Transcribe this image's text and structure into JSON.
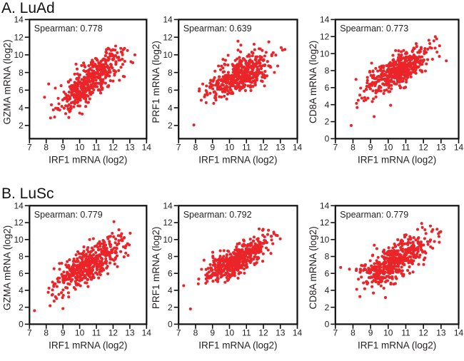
{
  "panels": {
    "a": {
      "label": "A. LuAd"
    },
    "b": {
      "label": "B. LuSc"
    }
  },
  "style": {
    "marker_color": "#ea2529",
    "axis_color": "#0f0f0f",
    "text_color": "#231f20"
  },
  "chart_data": [
    {
      "type": "scatter",
      "panel": "A. LuAd",
      "xlabel": "IRF1 mRNA (log2)",
      "ylabel": "GZMA mRNA (log2)",
      "annotation": "Spearman: 0.778",
      "spearman": 0.778,
      "xlim": [
        7,
        14
      ],
      "ylim": [
        0.5,
        14
      ],
      "x_ticks": [
        7,
        8,
        9,
        10,
        11,
        12,
        13,
        14
      ],
      "y_ticks": [
        2,
        4,
        6,
        8,
        10,
        12,
        14
      ],
      "n_points": 460,
      "distribution": {
        "x_mean": 10.6,
        "x_sd": 0.92,
        "y_mean": 7.05,
        "y_sd": 1.6,
        "rho": 0.75,
        "seed": 11,
        "x_range": [
          7.85,
          13.35
        ],
        "y_range": [
          2.85,
          11.15
        ]
      },
      "outliers": [
        [
          7.9,
          5.2
        ],
        [
          8.15,
          6.7
        ],
        [
          12.15,
          11.0
        ],
        [
          11.6,
          10.6
        ],
        [
          13.3,
          10.0
        ],
        [
          9.35,
          2.9
        ],
        [
          10.15,
          3.3
        ]
      ]
    },
    {
      "type": "scatter",
      "panel": "A. LuAd",
      "xlabel": "IRF1 mRNA (log2)",
      "ylabel": "PRF1 mRNA (log2)",
      "annotation": "Spearman: 0.639",
      "spearman": 0.639,
      "xlim": [
        7,
        14
      ],
      "ylim": [
        0.5,
        14
      ],
      "x_ticks": [
        7,
        8,
        9,
        10,
        11,
        12,
        13,
        14
      ],
      "y_ticks": [
        2,
        4,
        6,
        8,
        10,
        12,
        14
      ],
      "n_points": 450,
      "distribution": {
        "x_mean": 10.6,
        "x_sd": 0.95,
        "y_mean": 7.75,
        "y_sd": 1.3,
        "rho": 0.62,
        "seed": 22,
        "x_range": [
          8.2,
          13.3
        ],
        "y_range": [
          4.3,
          11.6
        ]
      },
      "outliers": [
        [
          7.9,
          2.05
        ],
        [
          10.5,
          11.55
        ],
        [
          11.45,
          11.2
        ]
      ]
    },
    {
      "type": "scatter",
      "panel": "A. LuAd",
      "xlabel": "IRF1 mRNA (log2)",
      "ylabel": "CD8A mRNA (log2)",
      "annotation": "Spearman: 0.773",
      "spearman": 0.773,
      "xlim": [
        7,
        14
      ],
      "ylim": [
        0,
        14
      ],
      "x_ticks": [
        7,
        8,
        9,
        10,
        11,
        12,
        13,
        14
      ],
      "y_ticks": [
        0,
        2,
        4,
        6,
        8,
        10,
        12,
        14
      ],
      "n_points": 470,
      "distribution": {
        "x_mean": 10.6,
        "x_sd": 0.95,
        "y_mean": 8.0,
        "y_sd": 1.45,
        "rho": 0.74,
        "seed": 33,
        "x_range": [
          8.05,
          13.0
        ],
        "y_range": [
          3.5,
          12.25
        ]
      },
      "outliers": [
        [
          7.9,
          1.55
        ],
        [
          9.2,
          2.6
        ],
        [
          13.3,
          9.15
        ],
        [
          8.2,
          4.15
        ]
      ]
    },
    {
      "type": "scatter",
      "panel": "B. LuSc",
      "xlabel": "IRF1 mRNA (log2)",
      "ylabel": "GZMA mRNA (log2)",
      "annotation": "Spearman: 0.779",
      "spearman": 0.779,
      "xlim": [
        7,
        14
      ],
      "ylim": [
        0,
        14
      ],
      "x_ticks": [
        7,
        8,
        9,
        10,
        11,
        12,
        13,
        14
      ],
      "y_ticks": [
        0,
        2,
        4,
        6,
        8,
        10,
        12,
        14
      ],
      "n_points": 460,
      "distribution": {
        "x_mean": 10.4,
        "x_sd": 1.05,
        "y_mean": 6.9,
        "y_sd": 1.65,
        "rho": 0.75,
        "seed": 44,
        "x_range": [
          8.0,
          13.1
        ],
        "y_range": [
          1.85,
          12.1
        ]
      },
      "outliers": [
        [
          7.3,
          1.6
        ],
        [
          12.05,
          12.1
        ],
        [
          12.35,
          11.15
        ],
        [
          9.0,
          1.85
        ]
      ]
    },
    {
      "type": "scatter",
      "panel": "B. LuSc",
      "xlabel": "IRF1 mRNA (log2)",
      "ylabel": "PRF1 mRNA (log2)",
      "annotation": "Spearman: 0.792",
      "spearman": 0.792,
      "xlim": [
        7,
        14
      ],
      "ylim": [
        0,
        14
      ],
      "x_ticks": [
        7,
        8,
        9,
        10,
        11,
        12,
        13,
        14
      ],
      "y_ticks": [
        0,
        2,
        4,
        6,
        8,
        10,
        12,
        14
      ],
      "n_points": 460,
      "distribution": {
        "x_mean": 10.4,
        "x_sd": 1.0,
        "y_mean": 7.6,
        "y_sd": 1.3,
        "rho": 0.77,
        "seed": 55,
        "x_range": [
          8.1,
          13.0
        ],
        "y_range": [
          3.15,
          11.3
        ]
      },
      "outliers": [
        [
          7.3,
          4.55
        ],
        [
          7.7,
          1.8
        ],
        [
          11.75,
          11.25
        ],
        [
          12.3,
          11.1
        ]
      ]
    },
    {
      "type": "scatter",
      "panel": "B. LuSc",
      "xlabel": "IRF1 mRNA (log2)",
      "ylabel": "CD8A mRNA (log2)",
      "annotation": "Spearman: 0.779",
      "spearman": 0.779,
      "xlim": [
        7,
        14
      ],
      "ylim": [
        0,
        14
      ],
      "x_ticks": [
        7,
        8,
        9,
        10,
        11,
        12,
        13,
        14
      ],
      "y_ticks": [
        0,
        2,
        4,
        6,
        8,
        10,
        12,
        14
      ],
      "n_points": 460,
      "distribution": {
        "x_mean": 10.4,
        "x_sd": 1.0,
        "y_mean": 7.5,
        "y_sd": 1.5,
        "rho": 0.75,
        "seed": 66,
        "x_range": [
          8.1,
          13.0
        ],
        "y_range": [
          2.65,
          11.95
        ]
      },
      "outliers": [
        [
          7.3,
          6.7
        ],
        [
          7.8,
          6.5
        ],
        [
          11.9,
          11.9
        ],
        [
          12.4,
          11.6
        ]
      ]
    }
  ]
}
